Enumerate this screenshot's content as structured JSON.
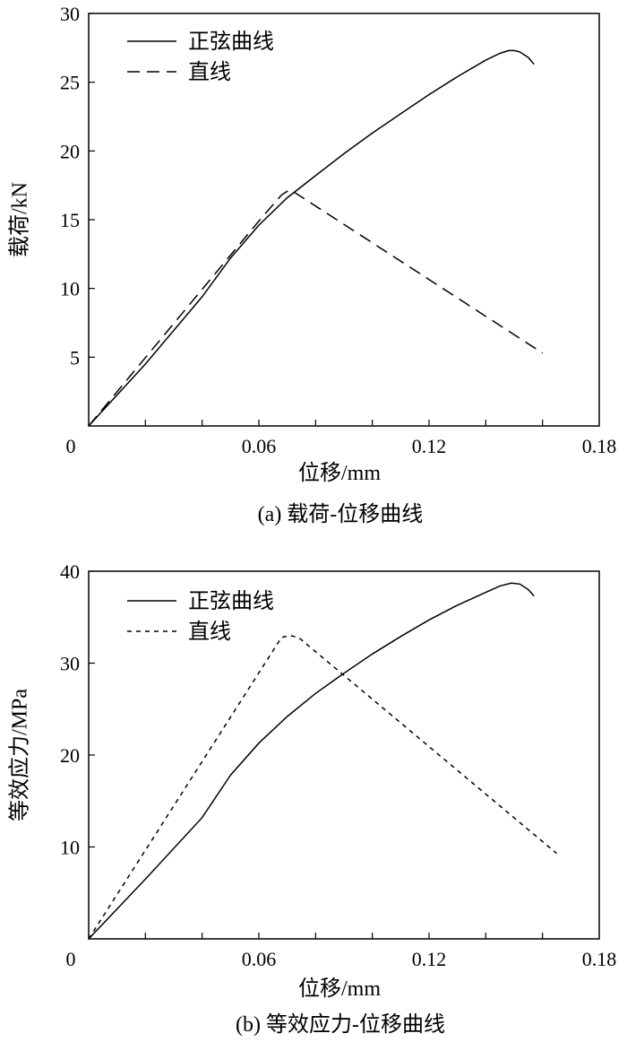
{
  "chart_data": [
    {
      "type": "line",
      "caption": "(a) 载荷-位移曲线",
      "xlabel": "位移/mm",
      "ylabel": "载荷/kN",
      "xlim": [
        0,
        0.18
      ],
      "ylim": [
        0,
        30
      ],
      "x_ticks": [
        0,
        0.06,
        0.12,
        0.18
      ],
      "x_tick_labels": [
        "0",
        "0.06",
        "0.12",
        "0.18"
      ],
      "y_ticks": [
        5,
        10,
        15,
        20,
        25,
        30
      ],
      "y_tick_labels": [
        "5",
        "10",
        "15",
        "20",
        "25",
        "30"
      ],
      "legend_position": "top-left",
      "grid": false,
      "series": [
        {
          "name": "正弦曲线",
          "style": "solid",
          "x": [
            0,
            0.02,
            0.04,
            0.05,
            0.06,
            0.07,
            0.08,
            0.09,
            0.1,
            0.11,
            0.12,
            0.13,
            0.14,
            0.145,
            0.148,
            0.15,
            0.152,
            0.155,
            0.157
          ],
          "y": [
            0,
            4.5,
            9.4,
            12.2,
            14.6,
            16.6,
            18.2,
            19.8,
            21.3,
            22.7,
            24.1,
            25.4,
            26.6,
            27.1,
            27.3,
            27.3,
            27.2,
            26.8,
            26.3
          ]
        },
        {
          "name": "直线",
          "style": "dashed",
          "x": [
            0,
            0.06,
            0.068,
            0.071,
            0.16
          ],
          "y": [
            0,
            14.9,
            16.8,
            17.2,
            5.3
          ]
        }
      ]
    },
    {
      "type": "line",
      "caption": "(b) 等效应力-位移曲线",
      "xlabel": "位移/mm",
      "ylabel": "等效应力/MPa",
      "xlim": [
        0,
        0.18
      ],
      "ylim": [
        0,
        40
      ],
      "x_ticks": [
        0,
        0.06,
        0.12,
        0.18
      ],
      "x_tick_labels": [
        "0",
        "0.06",
        "0.12",
        "0.18"
      ],
      "y_ticks": [
        10,
        20,
        30,
        40
      ],
      "y_tick_labels": [
        "10",
        "20",
        "30",
        "40"
      ],
      "legend_position": "top-left",
      "grid": false,
      "series": [
        {
          "name": "正弦曲线",
          "style": "solid",
          "x": [
            0,
            0.02,
            0.04,
            0.05,
            0.06,
            0.07,
            0.08,
            0.09,
            0.1,
            0.11,
            0.12,
            0.13,
            0.14,
            0.145,
            0.149,
            0.152,
            0.155,
            0.157
          ],
          "y": [
            0,
            6.5,
            13.2,
            17.8,
            21.3,
            24.2,
            26.7,
            28.9,
            31.0,
            32.9,
            34.7,
            36.3,
            37.7,
            38.4,
            38.7,
            38.6,
            38.0,
            37.3
          ]
        },
        {
          "name": "直线",
          "style": "dotted",
          "x": [
            0,
            0.068,
            0.071,
            0.074,
            0.165
          ],
          "y": [
            0,
            32.8,
            33.0,
            32.8,
            9.3
          ]
        }
      ]
    }
  ]
}
